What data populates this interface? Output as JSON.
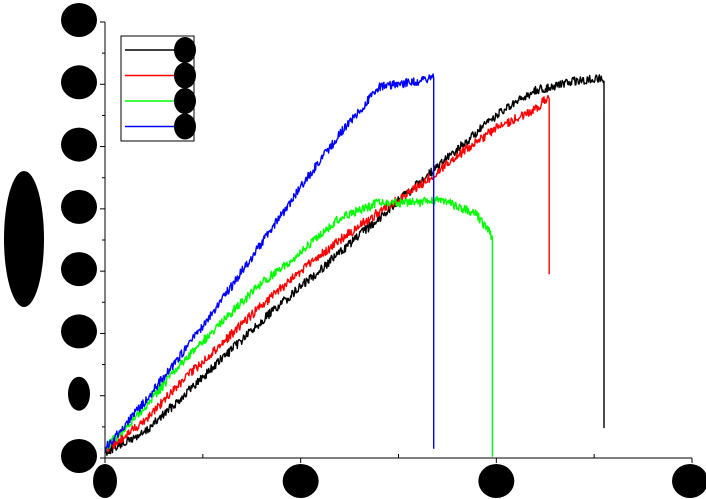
{
  "chart_data": {
    "type": "line",
    "title": "",
    "xlabel": "",
    "ylabel": "",
    "xlim": [
      0,
      3
    ],
    "ylim": [
      0,
      7
    ],
    "x_ticks": [
      0,
      1,
      2,
      3
    ],
    "y_ticks": [
      0,
      1,
      2,
      3,
      4,
      5,
      6,
      7
    ],
    "legend_position": "top-left",
    "grid": false,
    "tick_labels_legible": false,
    "series": [
      {
        "color": "#000000",
        "x": [
          0.0,
          0.2,
          0.4,
          0.6,
          0.8,
          1.0,
          1.2,
          1.4,
          1.6,
          1.8,
          2.0,
          2.2,
          2.4,
          2.5,
          2.53,
          2.55,
          2.55
        ],
        "y": [
          0.1,
          0.4,
          1.0,
          1.6,
          2.2,
          2.75,
          3.3,
          3.85,
          4.4,
          4.95,
          5.5,
          5.9,
          6.05,
          6.08,
          6.1,
          6.05,
          0.48
        ]
      },
      {
        "color": "#ff0000",
        "x": [
          0.0,
          0.2,
          0.4,
          0.6,
          0.8,
          1.0,
          1.2,
          1.4,
          1.6,
          1.8,
          2.0,
          2.2,
          2.25,
          2.27,
          2.27
        ],
        "y": [
          0.1,
          0.6,
          1.25,
          1.85,
          2.45,
          3.0,
          3.5,
          3.95,
          4.35,
          4.85,
          5.3,
          5.6,
          5.75,
          5.77,
          2.95
        ]
      },
      {
        "color": "#00ff00",
        "x": [
          0.0,
          0.2,
          0.4,
          0.6,
          0.8,
          1.0,
          1.2,
          1.4,
          1.6,
          1.7,
          1.8,
          1.9,
          1.95,
          1.98,
          1.98
        ],
        "y": [
          0.15,
          0.8,
          1.55,
          2.2,
          2.8,
          3.3,
          3.85,
          4.1,
          4.1,
          4.15,
          4.05,
          3.9,
          3.7,
          3.55,
          0.02
        ]
      },
      {
        "color": "#0000ff",
        "x": [
          0.0,
          0.2,
          0.4,
          0.6,
          0.8,
          1.0,
          1.2,
          1.4,
          1.6,
          1.65,
          1.68,
          1.68
        ],
        "y": [
          0.15,
          0.9,
          1.7,
          2.55,
          3.45,
          4.35,
          5.2,
          5.95,
          6.05,
          6.1,
          6.1,
          0.15
        ]
      }
    ]
  }
}
